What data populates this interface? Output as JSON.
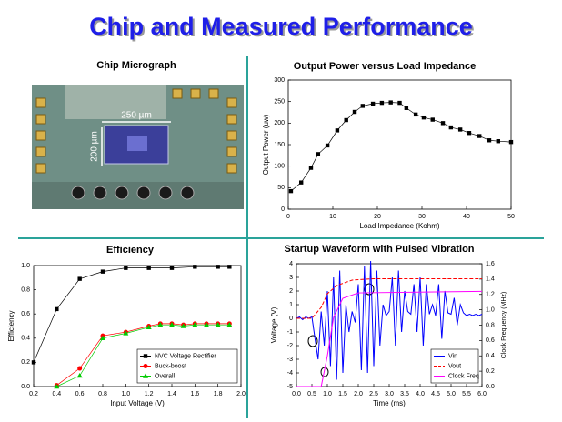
{
  "title": "Chip and Measured Performance",
  "micrograph": {
    "title": "Chip Micrograph",
    "width_label": "250 µm",
    "height_label": "200 µm"
  },
  "chart_data": [
    {
      "type": "line",
      "title": "Output Power versus Load Impedance",
      "x_label": "Load Impedance (Kohm)",
      "y_label": "Output Power (uw)",
      "x": [
        0.6,
        2.9,
        5.1,
        6.7,
        8.8,
        11,
        13,
        14.9,
        16.7,
        19,
        21,
        23,
        25,
        26.5,
        28.6,
        30.4,
        32.4,
        34.7,
        36.5,
        38.6,
        40.6,
        42.9,
        45.1,
        47.1,
        50
      ],
      "values": [
        42,
        62,
        96,
        128,
        148,
        183,
        207,
        226,
        240,
        245,
        247,
        248,
        247,
        235,
        220,
        213,
        208,
        200,
        190,
        185,
        177,
        170,
        160,
        158,
        156
      ],
      "color": "#000000",
      "marker": "square",
      "xlim": [
        0,
        50
      ],
      "xticks": [
        0,
        10,
        20,
        30,
        40,
        50
      ],
      "ylim": [
        0,
        300
      ],
      "yticks": [
        0,
        50,
        100,
        150,
        200,
        250,
        300
      ]
    },
    {
      "type": "line",
      "title": "Efficiency",
      "x_label": "Input Voltage (V)",
      "y_label": "Efficiency",
      "series": [
        {
          "name": "NVC Voltage Rectifier",
          "color": "#000000",
          "marker": "square",
          "x": [
            0.2,
            0.4,
            0.6,
            0.8,
            1.0,
            1.2,
            1.4,
            1.6,
            1.8,
            1.9
          ],
          "values": [
            0.2,
            0.64,
            0.89,
            0.95,
            0.98,
            0.98,
            0.98,
            0.99,
            0.99,
            0.99
          ]
        },
        {
          "name": "Buck-boost",
          "color": "#ff0000",
          "marker": "circle",
          "x": [
            0.4,
            0.6,
            0.8,
            1.0,
            1.2,
            1.3,
            1.4,
            1.5,
            1.6,
            1.7,
            1.8,
            1.9
          ],
          "values": [
            0.01,
            0.15,
            0.42,
            0.45,
            0.5,
            0.52,
            0.52,
            0.51,
            0.52,
            0.52,
            0.52,
            0.52
          ]
        },
        {
          "name": "Overall",
          "color": "#00cc00",
          "marker": "triangle",
          "x": [
            0.4,
            0.6,
            0.8,
            1.0,
            1.2,
            1.3,
            1.4,
            1.5,
            1.6,
            1.7,
            1.8,
            1.9
          ],
          "values": [
            0,
            0.09,
            0.4,
            0.44,
            0.49,
            0.51,
            0.51,
            0.5,
            0.51,
            0.51,
            0.51,
            0.51
          ]
        }
      ],
      "legend": "lower right",
      "xlim": [
        0.2,
        2.0
      ],
      "xticks": [
        0.2,
        0.4,
        0.6,
        0.8,
        {
          "value": 1.0,
          "label": "1.0"
        },
        1.2,
        1.4,
        1.6,
        1.8,
        {
          "value": 2.0,
          "label": "2.0"
        }
      ],
      "ylim": [
        0,
        1.0
      ],
      "yticks": [
        {
          "value": 0,
          "label": "0.0"
        },
        0.2,
        0.4,
        0.6,
        0.8,
        {
          "value": 1.0,
          "label": "1.0"
        }
      ]
    },
    {
      "type": "line",
      "title": "Startup Waveform with Pulsed Vibration",
      "x_label": "Time (ms)",
      "y_label": "Voltage (V)",
      "y2_label": "Clock Frequency (MHz)",
      "series": [
        {
          "name": "Vin",
          "color": "#0000ff",
          "marker": "none",
          "x": [
            0,
            0.1,
            0.2,
            0.3,
            0.4,
            0.5,
            0.6,
            0.7,
            0.8,
            0.9,
            1.0,
            1.1,
            1.2,
            1.3,
            1.4,
            1.5,
            1.6,
            1.7,
            1.8,
            1.9,
            2.0,
            2.1,
            2.2,
            2.3,
            2.4,
            2.5,
            2.6,
            2.7,
            2.8,
            2.9,
            3.0,
            3.1,
            3.2,
            3.3,
            3.4,
            3.5,
            3.6,
            3.7,
            3.8,
            3.9,
            4.0,
            4.1,
            4.2,
            4.3,
            4.4,
            4.5,
            4.6,
            4.7,
            4.8,
            4.9,
            5.0,
            5.1,
            5.2,
            5.3,
            5.4,
            5.5,
            5.6,
            5.7,
            5.8,
            5.9,
            6.0
          ],
          "values": [
            0,
            0.1,
            -0.1,
            0.1,
            0,
            0.1,
            -1.5,
            -3,
            0.5,
            -2,
            2,
            -3.5,
            3,
            -4.5,
            3.5,
            -4,
            1,
            -1,
            0.5,
            -0.3,
            2.5,
            -3.8,
            3.8,
            -4,
            4.2,
            -3.5,
            3.5,
            -2,
            1,
            0.2,
            0.5,
            3,
            -2,
            3.5,
            -1,
            2,
            0.5,
            0.3,
            2.5,
            -1,
            3,
            -2,
            2.5,
            0.3,
            1,
            0.2,
            2.5,
            -1.5,
            2,
            0.4,
            0.3,
            1.5,
            -0.5,
            1,
            0.4,
            0.2,
            0.3,
            0.2,
            0.3,
            0.2,
            0.3
          ]
        },
        {
          "name": "Vout",
          "color": "#ff0000",
          "marker": "none",
          "dash": true,
          "x": [
            0,
            0.5,
            0.8,
            1.0,
            1.3,
            1.8,
            2.5,
            6.0
          ],
          "values": [
            0,
            0,
            0.8,
            1.8,
            2.4,
            2.8,
            2.9,
            2.9
          ]
        },
        {
          "name": "Clock Freq",
          "color": "#ff00ff",
          "marker": "none",
          "axis": "y2",
          "x": [
            0,
            0.8,
            1.0,
            1.2,
            1.5,
            2.0,
            6.0
          ],
          "values": [
            0,
            0,
            0.4,
            0.9,
            1.15,
            1.22,
            1.24
          ]
        }
      ],
      "legend": "lower right",
      "xlim": [
        0,
        6.0
      ],
      "xticks": [
        {
          "value": 0,
          "label": "0.0"
        },
        0.5,
        {
          "value": 1,
          "label": "1.0"
        },
        1.5,
        {
          "value": 2,
          "label": "2.0"
        },
        2.5,
        {
          "value": 3,
          "label": "3.0"
        },
        3.5,
        {
          "value": 4,
          "label": "4.0"
        },
        4.5,
        {
          "value": 5,
          "label": "5.0"
        },
        5.5,
        {
          "value": 6,
          "label": "6.0"
        }
      ],
      "ylim": [
        -5,
        4
      ],
      "yticks": [
        -5,
        -4,
        -3,
        -2,
        -1,
        0,
        1,
        2,
        3,
        4
      ],
      "y2lim": [
        0,
        1.6
      ],
      "y2ticks": [
        {
          "value": 0,
          "label": "0.0"
        },
        0.2,
        0.4,
        0.6,
        0.8,
        {
          "value": 1,
          "label": "1.0"
        },
        1.2,
        1.4,
        1.6
      ]
    }
  ]
}
